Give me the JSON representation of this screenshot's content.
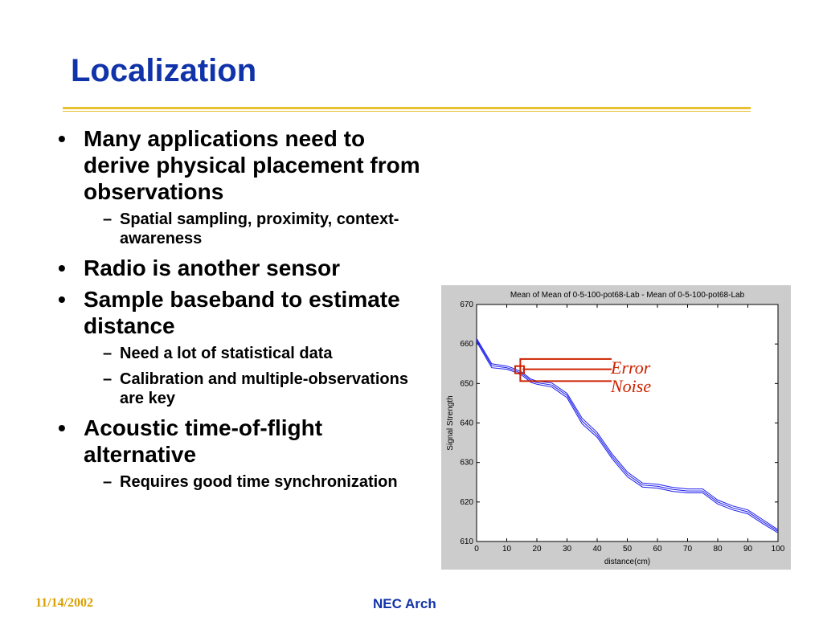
{
  "slide": {
    "title": "Localization",
    "footer_date": "11/14/2002",
    "footer_center": "NEC Arch",
    "colors": {
      "title": "#1133aa",
      "rule": "#e8c030",
      "footer_date": "#d9a000",
      "annotation": "#cc2200",
      "line": "#1a1aee"
    }
  },
  "bullets": [
    {
      "text": "Many applications need to derive physical placement from observations",
      "subs": [
        "Spatial sampling, proximity, context-awareness"
      ]
    },
    {
      "text": "Radio is another sensor",
      "subs": []
    },
    {
      "text": "Sample baseband to estimate distance",
      "subs": [
        "Need a lot of statistical data",
        "Calibration and multiple-observations are key"
      ]
    },
    {
      "text": "Acoustic time-of-flight alternative",
      "subs": [
        "Requires good time synchronization"
      ]
    }
  ],
  "markers": {
    "l1": "•",
    "l2": "–"
  },
  "chart_data": {
    "type": "line",
    "title": "Mean of Mean of 0-5-100-pot68-Lab - Mean of 0-5-100-pot68-Lab",
    "xlabel": "distance(cm)",
    "ylabel": "Signal Strength",
    "xlim": [
      0,
      100
    ],
    "ylim": [
      610,
      670
    ],
    "x_ticks": [
      0,
      10,
      20,
      30,
      40,
      50,
      60,
      70,
      80,
      90,
      100
    ],
    "y_ticks": [
      610,
      620,
      630,
      640,
      650,
      660,
      670
    ],
    "grid": false,
    "x": [
      0,
      5,
      10,
      12,
      15,
      18,
      20,
      25,
      30,
      35,
      40,
      45,
      50,
      55,
      60,
      65,
      70,
      75,
      80,
      85,
      90,
      95,
      100
    ],
    "series": [
      {
        "values": [
          661,
          654.5,
          654,
          653.5,
          652.5,
          650.7,
          650.2,
          649.6,
          647,
          640.5,
          637,
          631.5,
          627,
          624.3,
          624,
          623.2,
          622.8,
          622.8,
          620,
          618.5,
          617.5,
          615,
          612.6
        ]
      },
      {
        "values": [
          661.4,
          655,
          654.4,
          653.9,
          652.9,
          651.1,
          650.6,
          650.1,
          647.5,
          641.2,
          637.6,
          632.1,
          627.6,
          624.8,
          624.5,
          623.7,
          623.3,
          623.3,
          620.5,
          619,
          618,
          615.5,
          613
        ]
      },
      {
        "values": [
          660.6,
          654,
          653.6,
          653.1,
          652.1,
          650.3,
          649.8,
          649.1,
          646.4,
          639.8,
          636.4,
          630.9,
          626.4,
          623.8,
          623.5,
          622.7,
          622.3,
          622.3,
          619.5,
          618,
          617,
          614.5,
          612.2
        ]
      }
    ],
    "annotations": [
      "Error",
      "Noise"
    ]
  }
}
